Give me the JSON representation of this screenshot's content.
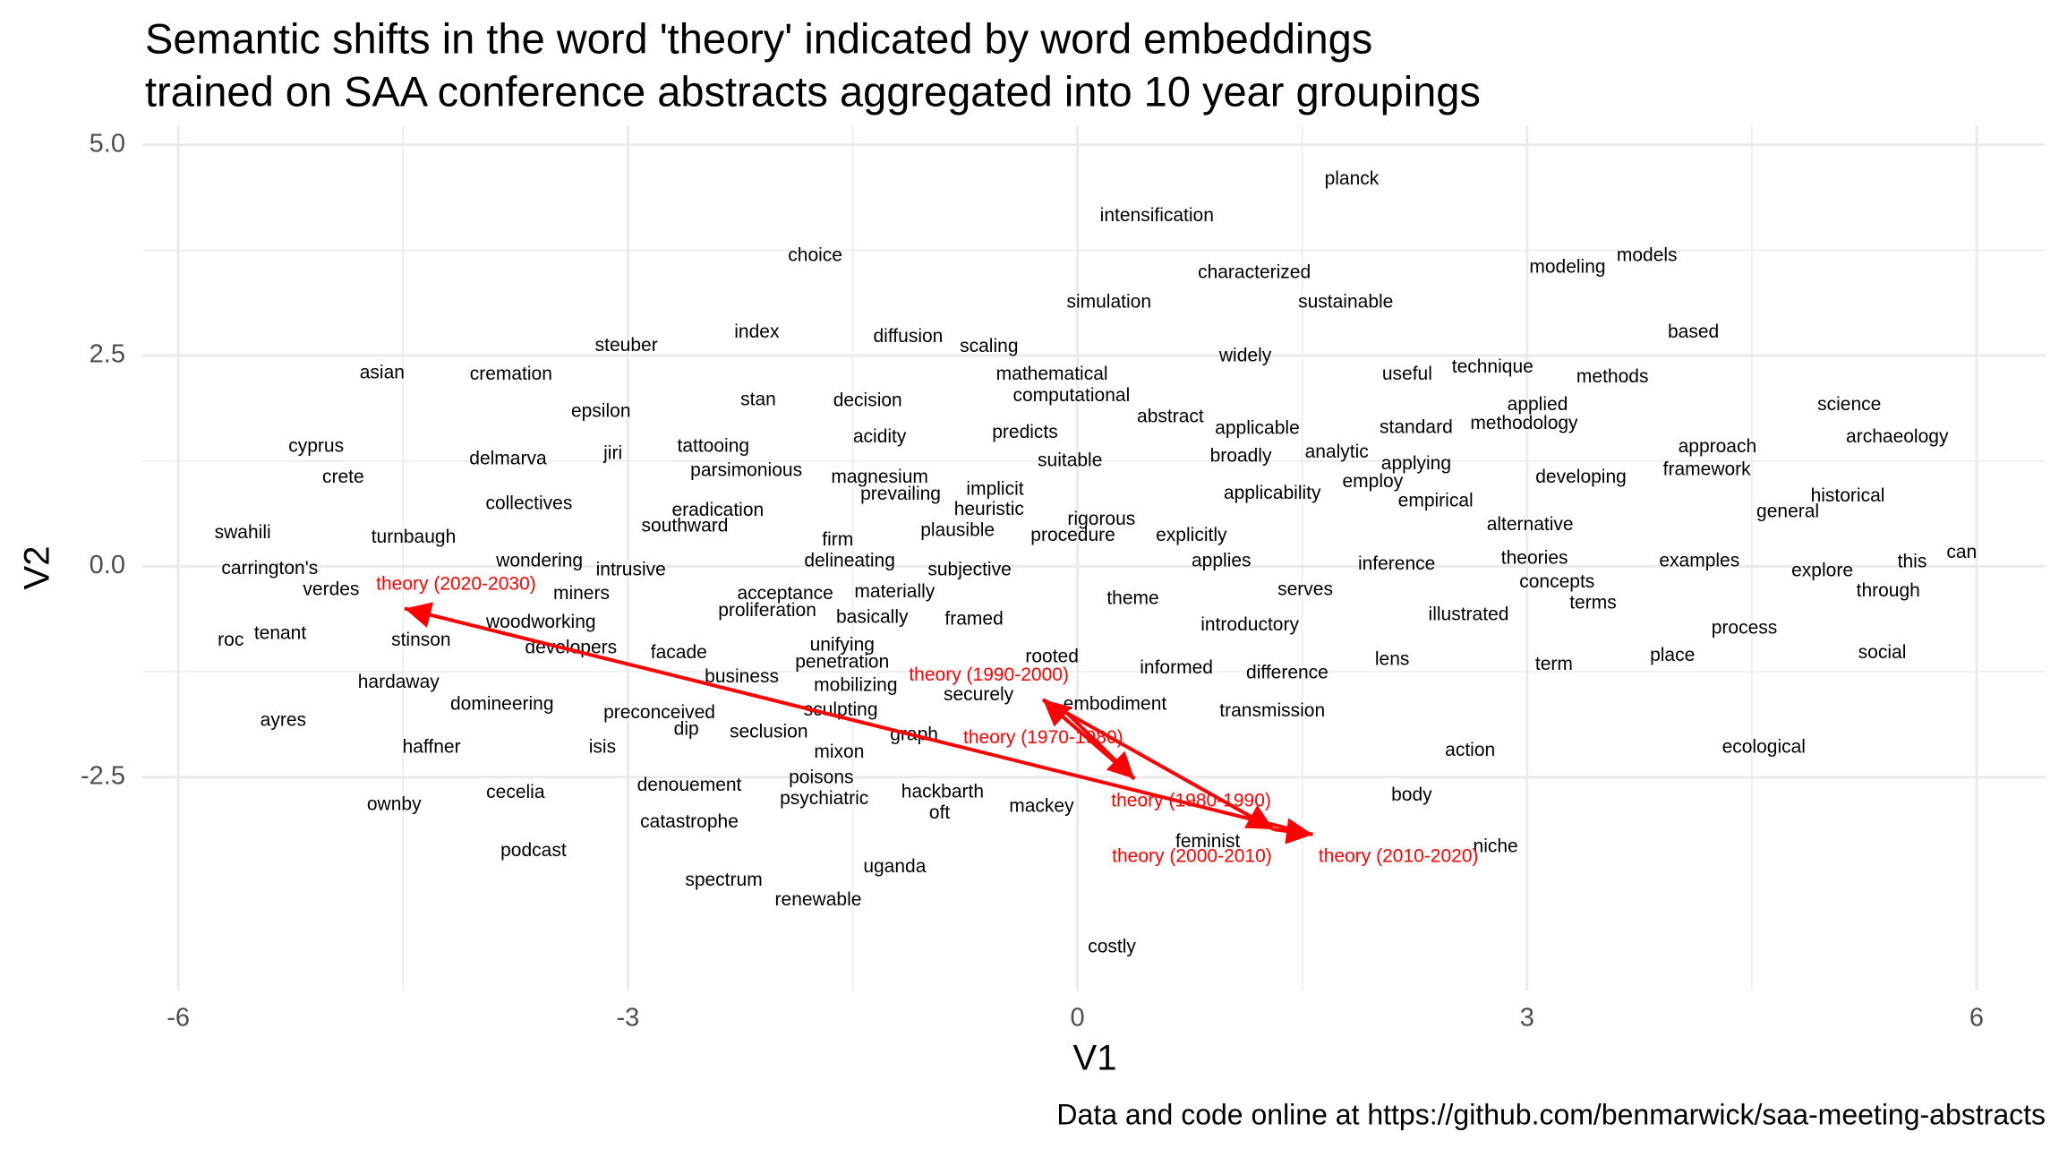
{
  "chart_data": {
    "type": "scatter",
    "title": [
      "Semantic shifts in the word 'theory' indicated by word embeddings",
      "trained on SAA conference abstracts aggregated into 10 year groupings"
    ],
    "x_label": "V1",
    "y_label": "V2",
    "caption": "Data and code online at https://github.com/benmarwick/saa-meeting-abstracts",
    "xlim": [
      -6.24,
      6.46
    ],
    "ylim": [
      -5.03,
      5.23
    ],
    "xticks": [
      -6,
      -3,
      0,
      3,
      6
    ],
    "yticks": [
      {
        "value": 5,
        "label": "5.0"
      },
      2.5,
      {
        "value": 0,
        "label": "0.0"
      },
      -2.5
    ],
    "grid": true,
    "labels": [
      "planck",
      "intensification",
      "choice",
      "characterized",
      "modeling",
      "models",
      "simulation",
      "sustainable",
      "index",
      "diffusion",
      "based",
      "steuber",
      "scaling",
      "widely",
      "asian",
      "cremation",
      "mathematical",
      "useful",
      "technique",
      "methods",
      "computational",
      "stan",
      "decision",
      "epsilon",
      "applied",
      "science",
      "abstract",
      "methodology",
      "applicable",
      "standard",
      "tattooing",
      "acidity",
      "predicts",
      "archaeology",
      "cyprus",
      "approach",
      "jiri",
      "delmarva",
      "broadly",
      "analytic",
      "suitable",
      "applying",
      "framework",
      "parsimonious",
      "crete",
      "magnesium",
      "developing",
      "employ",
      "implicit",
      "prevailing",
      "applicability",
      "historical",
      "collectives",
      "empirical",
      "heuristic",
      "eradication",
      "general",
      "rigorous",
      "southward",
      "alternative",
      "swahili",
      "plausible",
      "procedure",
      "explicitly",
      "turnbaugh",
      "firm",
      "can",
      "theories",
      "delineating",
      "wondering",
      "applies",
      "examples",
      "this",
      "inference",
      "carrington's",
      "subjective",
      "intrusive",
      "explore",
      "concepts",
      "verdes",
      "serves",
      "through",
      "miners",
      "acceptance",
      "materially",
      "theme",
      "terms",
      "proliferation",
      "illustrated",
      "basically",
      "framed",
      "woodworking",
      "introductory",
      "process",
      "tenant",
      "roc",
      "stinson",
      "developers",
      "unifying",
      "facade",
      "social",
      "rooted",
      "place",
      "lens",
      "penetration",
      "informed",
      "term",
      "difference",
      "business",
      "hardaway",
      "mobilizing",
      "securely",
      "embodiment",
      "domineering",
      "sculpting",
      "transmission",
      "preconceived",
      "ayres",
      "dip",
      "seclusion",
      "graph",
      "haffner",
      "isis",
      "ecological",
      "mixon",
      "action",
      "poisons",
      "denouement",
      "cecelia",
      "body",
      "hackbarth",
      "psychiatric",
      "ownby",
      "mackey",
      "oft",
      "catastrophe",
      "feminist",
      "niche",
      "podcast",
      "uganda",
      "spectrum",
      "renewable",
      "costly"
    ],
    "x": [
      1.83,
      0.53,
      -1.75,
      1.18,
      3.27,
      3.8,
      0.21,
      1.79,
      -2.14,
      -1.13,
      4.11,
      -3.01,
      -0.59,
      1.12,
      -4.64,
      -3.78,
      -0.17,
      2.2,
      2.77,
      3.57,
      -0.04,
      -2.13,
      -1.4,
      -3.18,
      3.07,
      5.15,
      0.62,
      2.98,
      1.2,
      2.26,
      -2.43,
      -1.32,
      -0.35,
      5.47,
      -5.08,
      4.27,
      -3.1,
      -3.8,
      1.09,
      1.73,
      -0.05,
      2.26,
      4.2,
      -2.21,
      -4.9,
      -1.32,
      3.36,
      1.97,
      -0.55,
      -1.18,
      1.3,
      5.14,
      -3.66,
      2.39,
      -0.59,
      -2.4,
      4.74,
      0.16,
      -2.62,
      3.02,
      -5.57,
      -0.8,
      -0.03,
      0.76,
      -4.43,
      -1.6,
      5.9,
      3.05,
      -1.52,
      -3.59,
      0.96,
      4.15,
      5.57,
      2.13,
      -5.39,
      -0.72,
      -2.98,
      4.97,
      3.2,
      -4.98,
      1.52,
      5.41,
      -3.31,
      -1.95,
      -1.22,
      0.37,
      3.44,
      -2.07,
      2.61,
      -1.37,
      -0.69,
      -3.58,
      1.15,
      4.45,
      -5.32,
      -5.65,
      -4.38,
      -3.38,
      -1.57,
      -2.66,
      5.37,
      -0.17,
      3.97,
      2.1,
      -1.57,
      0.66,
      3.18,
      1.4,
      -2.24,
      -4.53,
      -1.48,
      -0.66,
      0.25,
      -3.84,
      -1.58,
      1.3,
      -2.79,
      -5.3,
      -2.61,
      -2.06,
      -1.09,
      -4.31,
      -3.17,
      4.58,
      -1.59,
      2.62,
      -1.71,
      -2.59,
      -3.75,
      2.23,
      -0.9,
      -1.69,
      -4.56,
      -0.24,
      -0.92,
      -2.59,
      0.87,
      2.79,
      -3.63,
      -1.22,
      -2.36,
      -1.73,
      0.23
    ],
    "y": [
      4.59,
      4.15,
      3.68,
      3.48,
      3.54,
      3.68,
      3.13,
      3.13,
      2.77,
      2.72,
      2.77,
      2.61,
      2.6,
      2.49,
      2.29,
      2.27,
      2.27,
      2.27,
      2.36,
      2.24,
      2.02,
      1.97,
      1.96,
      1.83,
      1.91,
      1.91,
      1.77,
      1.69,
      1.63,
      1.64,
      1.42,
      1.53,
      1.58,
      1.53,
      1.42,
      1.41,
      1.33,
      1.27,
      1.3,
      1.35,
      1.25,
      1.21,
      1.14,
      1.13,
      1.05,
      1.05,
      1.05,
      1.0,
      0.91,
      0.85,
      0.86,
      0.83,
      0.74,
      0.77,
      0.67,
      0.66,
      0.64,
      0.55,
      0.47,
      0.49,
      0.39,
      0.42,
      0.36,
      0.36,
      0.34,
      0.31,
      0.16,
      0.09,
      0.06,
      0.06,
      0.06,
      0.06,
      0.05,
      0.02,
      -0.03,
      -0.05,
      -0.05,
      -0.06,
      -0.19,
      -0.28,
      -0.28,
      -0.3,
      -0.33,
      -0.33,
      -0.31,
      -0.39,
      -0.44,
      -0.53,
      -0.58,
      -0.61,
      -0.63,
      -0.67,
      -0.7,
      -0.74,
      -0.8,
      -0.88,
      -0.88,
      -0.97,
      -0.94,
      -1.03,
      -1.03,
      -1.08,
      -1.06,
      -1.11,
      -1.14,
      -1.21,
      -1.17,
      -1.27,
      -1.32,
      -1.38,
      -1.42,
      -1.53,
      -1.64,
      -1.64,
      -1.71,
      -1.72,
      -1.74,
      -1.83,
      -1.94,
      -1.97,
      -2.0,
      -2.15,
      -2.15,
      -2.15,
      -2.21,
      -2.19,
      -2.51,
      -2.6,
      -2.69,
      -2.72,
      -2.68,
      -2.76,
      -2.83,
      -2.85,
      -2.93,
      -3.04,
      -3.27,
      -3.33,
      -3.38,
      -3.57,
      -3.73,
      -3.96,
      -4.52
    ],
    "theory": {
      "color": "#ff0000",
      "labels": [
        "theory (1970-1980)",
        "theory (1980-1990)",
        "theory (1990-2000)",
        "theory (2000-2010)",
        "theory (2010-2020)",
        "theory (2020-2030)"
      ],
      "x": [
        -0.07,
        0.38,
        -0.23,
        1.31,
        1.57,
        -4.49
      ],
      "y": [
        -1.74,
        -2.52,
        -1.58,
        -3.12,
        -3.18,
        -0.5
      ]
    }
  }
}
